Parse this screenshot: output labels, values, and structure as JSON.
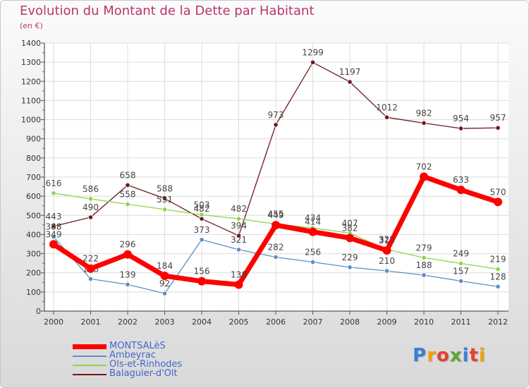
{
  "header": {
    "title": "Evolution du Montant de la Dette par Habitant",
    "subtitle": "(en €)"
  },
  "logo": {
    "text": "Proxiti",
    "colors": [
      "#3a7fd5",
      "#f2a200",
      "#e8412c",
      "#5aa832",
      "#3a7fd5",
      "#e8412c",
      "#f2a200"
    ]
  },
  "chart_data": {
    "type": "line",
    "title": "Evolution du Montant de la Dette par Habitant",
    "subtitle": "(en €)",
    "xlabel": "",
    "ylabel": "",
    "x": [
      "2000",
      "2001",
      "2002",
      "2003",
      "2004",
      "2005",
      "2006",
      "2007",
      "2008",
      "2009",
      "2010",
      "2011",
      "2012"
    ],
    "ylim": [
      0,
      1400
    ],
    "yticks": [
      0,
      100,
      200,
      300,
      400,
      500,
      600,
      700,
      800,
      900,
      1000,
      1100,
      1200,
      1300,
      1400
    ],
    "grid": true,
    "legend_position": "bottom-left",
    "series": [
      {
        "name": "Balaguier-d'Olt",
        "color": "#6b1a1a",
        "values": [
          443,
          490,
          658,
          588,
          482,
          394,
          973,
          1299,
          1197,
          1012,
          982,
          954,
          957
        ]
      },
      {
        "name": "Ols-et-Rinhodes",
        "color": "#90d34a",
        "values": [
          616,
          586,
          558,
          531,
          503,
          482,
          455,
          434,
          407,
          322,
          279,
          249,
          219
        ]
      },
      {
        "name": "Ambeyrac",
        "color": "#5b8fc4",
        "values": [
          388,
          168,
          139,
          92,
          373,
          321,
          282,
          256,
          229,
          210,
          188,
          157,
          128
        ]
      },
      {
        "name": "MONTSALèS",
        "color": "#ff0000",
        "values": [
          349,
          222,
          296,
          184,
          156,
          138,
          449,
          414,
          382,
          317,
          702,
          633,
          570
        ]
      }
    ],
    "legend_order": [
      "MONTSALèS",
      "Ambeyrac",
      "Ols-et-Rinhodes",
      "Balaguier-d'Olt"
    ]
  }
}
